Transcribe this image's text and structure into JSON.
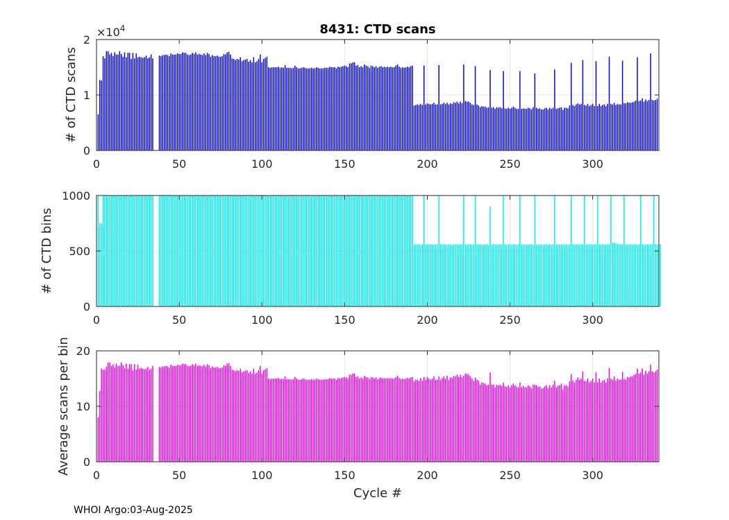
{
  "chart_data": [
    {
      "type": "bar",
      "id": "scans",
      "title": "8431: CTD scans",
      "ylabel": "# of CTD scans",
      "xlabel": "",
      "xlim": [
        0,
        340
      ],
      "ylim": [
        0,
        20000
      ],
      "xticks": [
        0,
        50,
        100,
        150,
        200,
        250,
        300
      ],
      "yticks": [
        0,
        10000,
        20000
      ],
      "ytick_labels": [
        "0",
        "1",
        "2"
      ],
      "exponent_base": "×10",
      "exponent_power": "4",
      "color": "#0000ee",
      "grid": true,
      "values": [
        6500,
        12700,
        12600,
        17000,
        16600,
        17900,
        17900,
        17300,
        17600,
        17000,
        17700,
        17300,
        17300,
        17900,
        17400,
        16900,
        17700,
        16800,
        17600,
        17600,
        16500,
        17600,
        16600,
        17500,
        16800,
        16900,
        16800,
        16700,
        16800,
        17100,
        16600,
        16800,
        17300,
        16600,
        0,
        0,
        0,
        17100,
        17000,
        17200,
        17200,
        17300,
        17200,
        17000,
        17500,
        17300,
        17300,
        17300,
        17500,
        17400,
        17400,
        17700,
        17600,
        17600,
        17300,
        17200,
        17300,
        17600,
        17400,
        17700,
        17300,
        17400,
        17300,
        17200,
        17500,
        17200,
        17600,
        17400,
        16900,
        17200,
        17000,
        17000,
        17100,
        16900,
        16900,
        17000,
        17400,
        17300,
        17700,
        17800,
        17300,
        16600,
        16500,
        16300,
        16500,
        16400,
        16800,
        16100,
        16300,
        16400,
        16500,
        16000,
        16300,
        15900,
        16800,
        15900,
        16100,
        16500,
        17300,
        15900,
        16500,
        16700,
        16900,
        15000,
        14900,
        15000,
        15000,
        15000,
        15000,
        15100,
        14900,
        15000,
        14900,
        15400,
        14900,
        14900,
        14900,
        14800,
        14900,
        15300,
        15000,
        14800,
        14800,
        14900,
        15000,
        14900,
        14800,
        14800,
        14800,
        14900,
        14800,
        14800,
        15000,
        14900,
        14800,
        14800,
        14800,
        14900,
        14900,
        14900,
        15100,
        15000,
        15000,
        15000,
        14800,
        15100,
        15000,
        15100,
        15200,
        15300,
        15200,
        15000,
        15700,
        15700,
        15900,
        15900,
        15300,
        15400,
        15000,
        15200,
        15000,
        15500,
        15300,
        15200,
        14900,
        15300,
        15200,
        15000,
        15200,
        14900,
        15100,
        15200,
        15000,
        15100,
        15000,
        15100,
        15000,
        15100,
        15000,
        15000,
        15300,
        15500,
        15100,
        14900,
        15000,
        14900,
        15000,
        15100,
        15000,
        15200,
        15300,
        8100,
        8200,
        8300,
        8200,
        8400,
        8200,
        15300,
        8300,
        8500,
        8400,
        8300,
        8400,
        8600,
        8300,
        8300,
        15400,
        8300,
        8400,
        8600,
        8400,
        8600,
        8300,
        8500,
        8400,
        8700,
        8600,
        8800,
        8500,
        8800,
        8500,
        15500,
        8900,
        8800,
        8800,
        8600,
        8300,
        8200,
        15200,
        8300,
        8100,
        7800,
        8000,
        7900,
        7900,
        7700,
        7800,
        14500,
        7700,
        7800,
        7500,
        7800,
        7700,
        7800,
        7600,
        14300,
        7600,
        7500,
        7700,
        7500,
        7700,
        7900,
        7700,
        7500,
        7500,
        14300,
        7500,
        7600,
        7500,
        7500,
        7700,
        7600,
        7400,
        7800,
        13900,
        7700,
        7500,
        7600,
        7400,
        7400,
        7600,
        7700,
        7400,
        7700,
        7500,
        7700,
        14600,
        7500,
        7600,
        7700,
        7800,
        7300,
        7700,
        7700,
        7600,
        8100,
        15800,
        8200,
        8000,
        8300,
        8500,
        8300,
        8400,
        16300,
        8200,
        8100,
        8400,
        8000,
        8200,
        8400,
        8000,
        16100,
        8000,
        8400,
        8000,
        8200,
        8300,
        8000,
        8400,
        16900,
        8400,
        8300,
        8600,
        8200,
        8400,
        8300,
        8300,
        16200,
        8500,
        8500,
        8700,
        8600,
        8600,
        8700,
        8800,
        9000,
        16800,
        8900,
        9000,
        9400,
        8800,
        9200,
        8900,
        9100,
        17500,
        9100,
        9000,
        9100,
        9300
      ]
    },
    {
      "type": "bar",
      "id": "bins",
      "title": "",
      "ylabel": "# of CTD bins",
      "xlabel": "",
      "xlim": [
        0,
        340
      ],
      "ylim": [
        0,
        1000
      ],
      "xticks": [
        0,
        50,
        100,
        150,
        200,
        250,
        300
      ],
      "yticks": [
        0,
        500,
        1000
      ],
      "ytick_labels": [
        "0",
        "500",
        "1000"
      ],
      "color": "#00eeee",
      "grid": true,
      "values": [
        1000,
        750,
        750,
        1000,
        1000,
        1000,
        1000,
        1000,
        1000,
        1000,
        1000,
        1000,
        1000,
        1000,
        1000,
        1000,
        1000,
        1000,
        1000,
        1000,
        1000,
        1000,
        1000,
        1000,
        1000,
        1000,
        1000,
        1000,
        1000,
        1000,
        1000,
        1000,
        1000,
        1000,
        0,
        0,
        0,
        1000,
        1000,
        1000,
        1000,
        1000,
        1000,
        1000,
        1000,
        1000,
        1000,
        1000,
        1000,
        1000,
        1000,
        1000,
        1000,
        1000,
        1000,
        1000,
        1000,
        1000,
        1000,
        1000,
        1000,
        1000,
        1000,
        1000,
        1000,
        1000,
        1000,
        1000,
        1000,
        1000,
        1000,
        1000,
        1000,
        1000,
        1000,
        1000,
        1000,
        1000,
        1000,
        1000,
        1000,
        1000,
        1000,
        1000,
        1000,
        1000,
        1000,
        1000,
        1000,
        1000,
        1000,
        1000,
        1000,
        1000,
        1000,
        1000,
        1000,
        1000,
        1000,
        1000,
        1000,
        1000,
        1000,
        1000,
        1000,
        1000,
        1000,
        1000,
        1000,
        1000,
        1000,
        1000,
        1000,
        1000,
        1000,
        1000,
        1000,
        1000,
        1000,
        1000,
        1000,
        1000,
        1000,
        1000,
        1000,
        1000,
        1000,
        1000,
        1000,
        1000,
        1000,
        1000,
        1000,
        1000,
        1000,
        1000,
        1000,
        1000,
        1000,
        1000,
        1000,
        1000,
        1000,
        1000,
        1000,
        1000,
        1000,
        1000,
        1000,
        1000,
        1000,
        1000,
        1000,
        1000,
        1000,
        1000,
        1000,
        1000,
        1000,
        1000,
        1000,
        1000,
        1000,
        1000,
        1000,
        1000,
        1000,
        1000,
        1000,
        1000,
        1000,
        1000,
        1000,
        1000,
        1000,
        1000,
        1000,
        1000,
        1000,
        1000,
        1000,
        1000,
        1000,
        1000,
        1000,
        1000,
        1000,
        1000,
        1000,
        1000,
        1000,
        560,
        555,
        560,
        560,
        555,
        560,
        1000,
        560,
        555,
        560,
        560,
        560,
        555,
        560,
        560,
        1000,
        560,
        555,
        560,
        560,
        555,
        560,
        560,
        555,
        560,
        560,
        560,
        555,
        560,
        560,
        1000,
        560,
        555,
        560,
        560,
        555,
        560,
        1000,
        560,
        555,
        560,
        560,
        555,
        560,
        560,
        555,
        900,
        555,
        560,
        560,
        555,
        560,
        560,
        555,
        1000,
        560,
        555,
        560,
        560,
        555,
        560,
        560,
        555,
        560,
        1000,
        560,
        555,
        560,
        560,
        555,
        560,
        560,
        555,
        1000,
        560,
        555,
        560,
        560,
        555,
        560,
        560,
        555,
        560,
        555,
        560,
        1000,
        560,
        555,
        560,
        560,
        555,
        560,
        560,
        555,
        560,
        1000,
        560,
        555,
        560,
        560,
        555,
        560,
        560,
        1000,
        560,
        555,
        560,
        560,
        555,
        560,
        560,
        1000,
        560,
        555,
        560,
        560,
        555,
        560,
        560,
        1000,
        570,
        575,
        570,
        565,
        560,
        565,
        560,
        1000,
        560,
        555,
        560,
        560,
        555,
        560,
        560,
        555,
        560,
        1000,
        560,
        555,
        560,
        560,
        555,
        560,
        560,
        1000,
        560,
        555,
        560,
        560
      ]
    },
    {
      "type": "bar",
      "id": "avg",
      "title": "",
      "ylabel": "Average scans per bin",
      "xlabel": "Cycle #",
      "xlim": [
        0,
        340
      ],
      "ylim": [
        0,
        20
      ],
      "xticks": [
        0,
        50,
        100,
        150,
        200,
        250,
        300
      ],
      "yticks": [
        0,
        10,
        20
      ],
      "ytick_labels": [
        "0",
        "10",
        "20"
      ],
      "color": "#ee00ee",
      "grid": true,
      "values": [
        8.0,
        12.8,
        16.8,
        16.6,
        16.6,
        17.1,
        17.9,
        17.9,
        17.3,
        17.6,
        17.0,
        17.7,
        17.3,
        17.3,
        17.9,
        17.4,
        16.9,
        17.7,
        16.8,
        17.6,
        17.6,
        16.5,
        17.6,
        16.6,
        17.5,
        16.8,
        16.9,
        16.8,
        16.7,
        16.8,
        17.1,
        16.6,
        16.8,
        17.3,
        0,
        0,
        0,
        17.1,
        17.0,
        17.2,
        17.2,
        17.3,
        17.2,
        17.0,
        17.5,
        17.3,
        17.3,
        17.3,
        17.5,
        17.4,
        17.4,
        17.7,
        17.6,
        17.6,
        17.3,
        17.2,
        17.3,
        17.6,
        17.4,
        17.7,
        17.3,
        17.4,
        17.3,
        17.2,
        17.5,
        17.2,
        17.6,
        17.4,
        16.9,
        17.2,
        17.0,
        17.0,
        17.1,
        16.9,
        16.9,
        17.0,
        17.4,
        17.3,
        17.7,
        17.8,
        17.3,
        16.6,
        16.5,
        16.3,
        16.5,
        16.4,
        16.8,
        16.1,
        16.3,
        16.4,
        16.5,
        16.0,
        16.3,
        15.9,
        16.8,
        15.9,
        16.1,
        16.5,
        17.3,
        15.9,
        16.5,
        16.7,
        16.9,
        15.0,
        14.9,
        15.0,
        15.0,
        15.0,
        15.0,
        15.1,
        14.9,
        15.0,
        14.9,
        15.4,
        14.9,
        14.9,
        14.9,
        14.8,
        14.9,
        15.3,
        15.0,
        14.8,
        14.8,
        14.9,
        15.0,
        14.9,
        14.8,
        14.8,
        14.8,
        14.9,
        14.8,
        14.8,
        15.0,
        14.9,
        14.8,
        14.8,
        14.8,
        14.9,
        14.9,
        14.9,
        15.1,
        15.0,
        15.0,
        15.0,
        14.8,
        15.1,
        15.0,
        15.1,
        15.2,
        15.3,
        15.2,
        15.0,
        15.7,
        15.7,
        15.9,
        15.9,
        15.3,
        15.4,
        15.0,
        15.2,
        15.0,
        15.5,
        15.3,
        15.2,
        14.9,
        15.3,
        15.2,
        15.0,
        15.2,
        14.9,
        15.1,
        15.2,
        15.0,
        15.1,
        15.0,
        15.1,
        15.0,
        15.1,
        15.0,
        15.0,
        15.3,
        15.5,
        15.1,
        14.9,
        15.0,
        14.9,
        15.0,
        15.1,
        15.0,
        15.2,
        15.3,
        14.5,
        14.8,
        14.8,
        14.6,
        15.1,
        14.6,
        15.3,
        14.8,
        15.3,
        15.0,
        14.8,
        15.0,
        15.4,
        14.8,
        14.8,
        15.4,
        14.8,
        15.1,
        15.4,
        15.0,
        15.5,
        14.8,
        15.2,
        15.1,
        15.5,
        15.4,
        15.7,
        15.3,
        15.7,
        15.2,
        15.5,
        15.9,
        15.9,
        15.7,
        15.4,
        15.0,
        14.6,
        15.2,
        14.8,
        14.6,
        13.9,
        14.3,
        14.2,
        14.1,
        13.8,
        13.9,
        16.1,
        13.9,
        13.9,
        13.4,
        13.9,
        13.8,
        13.9,
        13.7,
        14.3,
        13.6,
        13.5,
        13.8,
        13.4,
        13.8,
        14.1,
        13.8,
        13.5,
        13.4,
        14.3,
        13.4,
        13.7,
        13.4,
        13.4,
        13.8,
        13.6,
        13.2,
        13.9,
        13.9,
        13.8,
        13.5,
        13.6,
        13.2,
        13.3,
        13.6,
        13.8,
        13.2,
        13.8,
        13.4,
        13.9,
        14.6,
        13.4,
        13.7,
        13.8,
        14.1,
        13.0,
        13.8,
        13.8,
        13.6,
        14.5,
        15.8,
        14.6,
        14.3,
        14.8,
        15.2,
        14.8,
        15.0,
        16.3,
        14.6,
        14.5,
        15.0,
        14.3,
        14.6,
        15.0,
        14.3,
        16.1,
        14.3,
        15.0,
        14.3,
        14.6,
        14.8,
        14.3,
        15.0,
        16.9,
        15.0,
        14.8,
        15.4,
        14.6,
        15.0,
        14.8,
        14.8,
        16.2,
        14.9,
        14.8,
        15.3,
        15.2,
        15.4,
        15.4,
        15.7,
        15.9,
        16.8,
        15.9,
        16.1,
        16.8,
        15.7,
        16.4,
        15.9,
        16.3,
        17.5,
        16.3,
        16.1,
        16.3,
        16.6
      ]
    }
  ],
  "footer": "WHOI Argo:03-Aug-2025"
}
